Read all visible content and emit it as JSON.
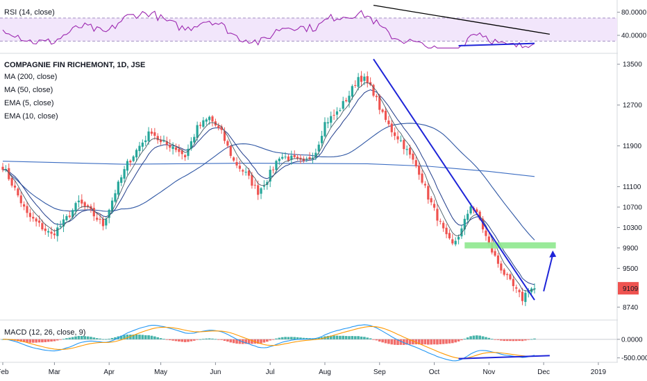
{
  "chart_data": [
    {
      "type": "line",
      "panel": "rsi",
      "label": "RSI (14, close)",
      "ylim": [
        10,
        100
      ],
      "ticks": [
        {
          "v": 80,
          "t": "80.0000"
        },
        {
          "v": 40,
          "t": "40.0000"
        }
      ],
      "band": [
        30,
        70
      ],
      "colors": {
        "line": "#9c27b0",
        "band": "#f2e6fb",
        "trend_down": "#000000",
        "trend_up": "#1e24d8"
      }
    },
    {
      "type": "candlestick",
      "panel": "price",
      "title": "COMPAGNIE FIN RICHEMONT, 1D, JSE",
      "legend": [
        "MA (200, close)",
        "MA (50, close)",
        "EMA (5, close)",
        "EMA (10, close)"
      ],
      "ylim": [
        8500,
        13700
      ],
      "ticks": [
        13500,
        12700,
        11900,
        11100,
        10700,
        10300,
        9900,
        9500,
        8740
      ],
      "last_price": "9109",
      "x_labels": [
        "Feb",
        "Mar",
        "Apr",
        "May",
        "Jun",
        "Jul",
        "Aug",
        "Sep",
        "Oct",
        "Nov",
        "Dec",
        "2019"
      ],
      "close_anchors": [
        [
          0,
          11500
        ],
        [
          4,
          11050
        ],
        [
          8,
          10550
        ],
        [
          12,
          10350
        ],
        [
          16,
          10150
        ],
        [
          20,
          10400
        ],
        [
          25,
          10800
        ],
        [
          29,
          10600
        ],
        [
          33,
          10350
        ],
        [
          37,
          11000
        ],
        [
          41,
          11550
        ],
        [
          45,
          11900
        ],
        [
          49,
          12200
        ],
        [
          52,
          11950
        ],
        [
          56,
          11900
        ],
        [
          60,
          11700
        ],
        [
          64,
          12250
        ],
        [
          68,
          12450
        ],
        [
          72,
          12150
        ],
        [
          76,
          11600
        ],
        [
          80,
          11350
        ],
        [
          84,
          11000
        ],
        [
          87,
          11250
        ],
        [
          91,
          11700
        ],
        [
          95,
          11650
        ],
        [
          99,
          11550
        ],
        [
          103,
          11800
        ],
        [
          106,
          12350
        ],
        [
          110,
          12550
        ],
        [
          114,
          12900
        ],
        [
          117,
          13250
        ],
        [
          119,
          13200
        ],
        [
          122,
          12950
        ],
        [
          125,
          12500
        ],
        [
          128,
          12200
        ],
        [
          131,
          12000
        ],
        [
          134,
          11700
        ],
        [
          137,
          11400
        ],
        [
          140,
          10900
        ],
        [
          143,
          10500
        ],
        [
          146,
          10100
        ],
        [
          148,
          9950
        ],
        [
          151,
          10250
        ],
        [
          154,
          10750
        ],
        [
          157,
          10450
        ],
        [
          160,
          9950
        ],
        [
          163,
          9600
        ],
        [
          166,
          9300
        ],
        [
          169,
          9050
        ],
        [
          171,
          8900
        ],
        [
          173,
          9100
        ],
        [
          175,
          9109
        ]
      ],
      "ma200": [
        [
          0,
          11600
        ],
        [
          40,
          11540
        ],
        [
          80,
          11560
        ],
        [
          120,
          11550
        ],
        [
          140,
          11500
        ],
        [
          160,
          11400
        ],
        [
          175,
          11300
        ]
      ],
      "overlays": {
        "trend_line": [
          [
            122,
            13600
          ],
          [
            175,
            8880
          ]
        ],
        "support_zone": [
          [
            152,
            10010
          ],
          [
            182,
            9890
          ]
        ],
        "arrow": [
          [
            178,
            9050
          ],
          [
            181,
            9850
          ]
        ]
      },
      "colors": {
        "up": "#26a69a",
        "down": "#ef5350",
        "ma200": "#3a6cc2",
        "ma50": "#2f57a4",
        "ema5": "#455a64",
        "ema10": "#1f3b8a",
        "trend": "#1e24d8",
        "zone": "#8ee88e",
        "last": "#ef5350"
      }
    },
    {
      "type": "bar",
      "panel": "macd",
      "label": "MACD (12, 26, close, 9)",
      "ylim": [
        -600,
        500
      ],
      "ticks": [
        {
          "v": 0,
          "t": "0.0000"
        },
        {
          "v": -500,
          "t": "-500.0000"
        }
      ],
      "colors": {
        "macd": "#2196f3",
        "signal": "#ff9800",
        "hist_up": "#26a69a",
        "hist_down": "#ef5350",
        "trend": "#1e24d8"
      }
    }
  ]
}
